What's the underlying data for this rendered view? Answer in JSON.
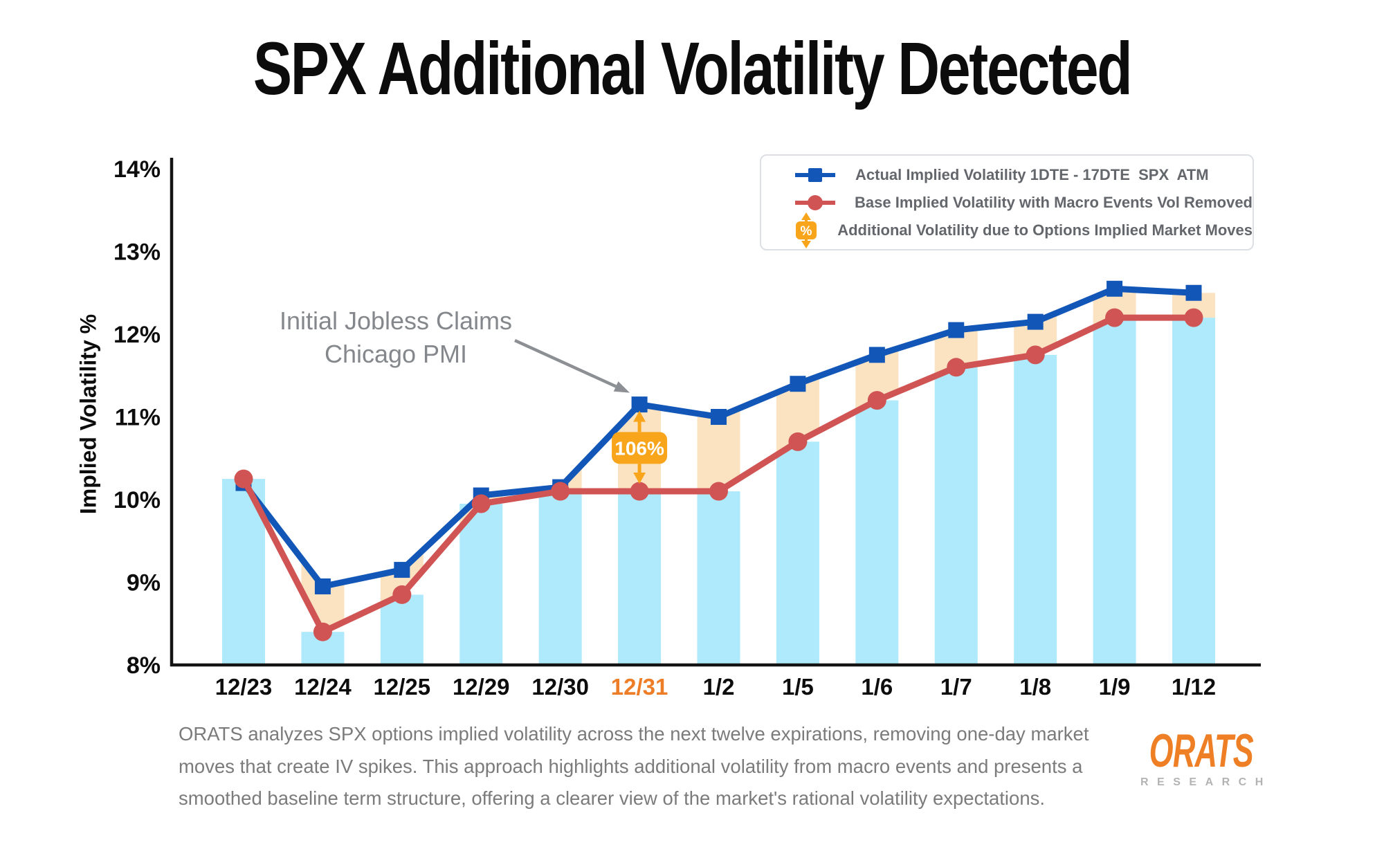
{
  "title": "SPX Additional Volatility Detected",
  "y_axis": {
    "label": "Implied Volatility %",
    "ticks": [
      "14%",
      "13%",
      "12%",
      "11%",
      "10%",
      "9%",
      "8%"
    ]
  },
  "legend": [
    {
      "marker": "blue-line-square",
      "label": "Actual Implied Volatility 1DTE - 17DTE  SPX  ATM"
    },
    {
      "marker": "red-line-circle",
      "label": "Base Implied Volatility with Macro Events Vol Removed"
    },
    {
      "marker": "orange-percent-arrows",
      "label": "Additional Volatility due to Options Implied Market Moves"
    }
  ],
  "annotation": {
    "line1": "Initial Jobless Claims",
    "line2": "Chicago PMI"
  },
  "footer": {
    "lines": [
      "ORATS analyzes SPX options implied volatility across the next twelve expirations, removing one-day market",
      "moves that create IV spikes. This approach highlights additional volatility from macro events and presents a",
      "smoothed baseline term structure, offering a clearer view of the market's rational volatility expectations."
    ]
  },
  "logo": {
    "name": "ORATS",
    "sub": "RESEARCH"
  },
  "colors": {
    "actual_line": "#1257b8",
    "base_line": "#d15454",
    "bar_fill": "#aeeafc",
    "band_fill": "#fbe3c2",
    "accent_orange": "#f8a51b",
    "highlight_date": "#ee7d28",
    "axis_black": "#141414",
    "tick_black": "#0d0d0d",
    "annotation_gray": "#8c9094",
    "badge_text": "#ffffff"
  },
  "chart_data": {
    "type": "line",
    "title": "SPX Additional Volatility Detected",
    "ylabel": "Implied Volatility %",
    "ylim": [
      8,
      14
    ],
    "grid": false,
    "legend_position": "top-right",
    "categories": [
      "12/23",
      "12/24",
      "12/25",
      "12/29",
      "12/30",
      "12/31",
      "1/2",
      "1/5",
      "1/6",
      "1/7",
      "1/8",
      "1/9",
      "1/12"
    ],
    "series": [
      {
        "name": "Actual Implied Volatility 1DTE - 17DTE SPX ATM",
        "marker": "square",
        "values": [
          10.2,
          8.95,
          9.15,
          10.05,
          10.15,
          11.15,
          11.0,
          11.4,
          11.75,
          12.05,
          12.15,
          12.55,
          12.5
        ]
      },
      {
        "name": "Base Implied Volatility with Macro Events Vol Removed",
        "marker": "circle",
        "values": [
          10.25,
          8.4,
          8.85,
          9.95,
          10.1,
          10.1,
          10.1,
          10.7,
          11.2,
          11.6,
          11.75,
          12.2,
          12.2
        ]
      }
    ],
    "bars": {
      "follows_series": "Base Implied Volatility with Macro Events Vol Removed",
      "note": "light blue bars rise to base IV value"
    },
    "band": {
      "between": [
        "actual",
        "base"
      ],
      "note": "peach stripes fill actual-minus-base gap over each bar"
    },
    "highlight": {
      "category": "12/31",
      "label": "106%"
    }
  }
}
